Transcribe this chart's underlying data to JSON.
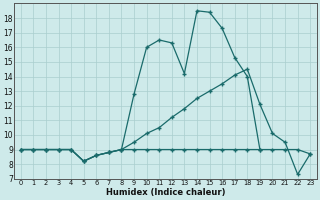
{
  "xlabel": "Humidex (Indice chaleur)",
  "background_color": "#ceeaea",
  "grid_color": "#aacece",
  "line_color": "#1a6b6b",
  "xlim": [
    -0.5,
    23.5
  ],
  "ylim": [
    7,
    19
  ],
  "xticks": [
    0,
    1,
    2,
    3,
    4,
    5,
    6,
    7,
    8,
    9,
    10,
    11,
    12,
    13,
    14,
    15,
    16,
    17,
    18,
    19,
    20,
    21,
    22,
    23
  ],
  "yticks": [
    7,
    8,
    9,
    10,
    11,
    12,
    13,
    14,
    15,
    16,
    17,
    18
  ],
  "line1_x": [
    0,
    1,
    2,
    3,
    4,
    5,
    6,
    7,
    8,
    9,
    10,
    11,
    12,
    13,
    14,
    15,
    16,
    17,
    18,
    19
  ],
  "line1_y": [
    9,
    9,
    9,
    9,
    9,
    8.2,
    8.6,
    8.8,
    9,
    12.8,
    16.0,
    16.5,
    16.3,
    14.2,
    18.5,
    18.4,
    17.3,
    15.3,
    14.0,
    9.0
  ],
  "line2_x": [
    0,
    1,
    2,
    3,
    4,
    5,
    6,
    7,
    8,
    9,
    10,
    11,
    12,
    13,
    14,
    15,
    16,
    17,
    18,
    19,
    20,
    21,
    22,
    23
  ],
  "line2_y": [
    9,
    9,
    9,
    9,
    9,
    8.2,
    8.6,
    8.8,
    9,
    9.5,
    10.1,
    10.5,
    11.2,
    11.8,
    12.5,
    13.0,
    13.5,
    14.1,
    14.5,
    12.1,
    10.1,
    9.5,
    7.3,
    8.7
  ],
  "line3_x": [
    0,
    1,
    2,
    3,
    4,
    5,
    6,
    7,
    8,
    9,
    10,
    11,
    12,
    13,
    14,
    15,
    16,
    17,
    18,
    19,
    20,
    21,
    22,
    23
  ],
  "line3_y": [
    9,
    9,
    9,
    9,
    9,
    8.2,
    8.6,
    8.8,
    9,
    9,
    9,
    9,
    9,
    9,
    9,
    9,
    9,
    9,
    9,
    9,
    9,
    9,
    9,
    8.7
  ]
}
